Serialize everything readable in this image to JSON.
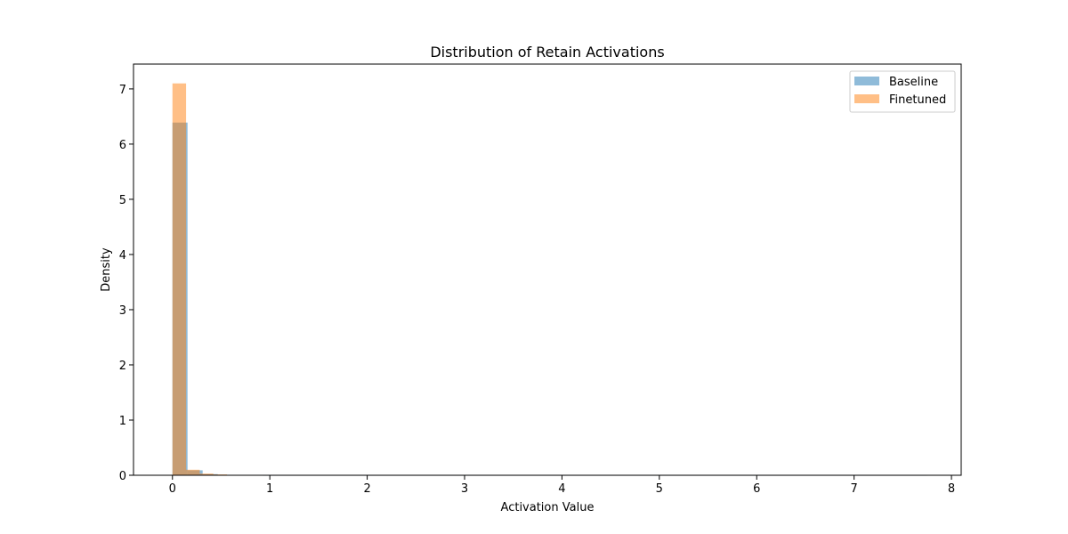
{
  "chart_data": {
    "type": "histogram",
    "title": "Distribution of Retain Activations",
    "xlabel": "Activation Value",
    "ylabel": "Density",
    "xlim": [
      -0.4,
      8.1
    ],
    "ylim": [
      0,
      7.45
    ],
    "xticks": [
      0,
      1,
      2,
      3,
      4,
      5,
      6,
      7,
      8
    ],
    "yticks": [
      0,
      1,
      2,
      3,
      4,
      5,
      6,
      7
    ],
    "grid": false,
    "legend": {
      "position": "top-right"
    },
    "series": [
      {
        "name": "Baseline",
        "color": "#1f77b4",
        "alpha": 0.5,
        "bins": [
          {
            "x0": 0.0,
            "x1": 0.155,
            "y": 6.39
          },
          {
            "x0": 0.155,
            "x1": 0.31,
            "y": 0.09
          },
          {
            "x0": 0.31,
            "x1": 0.465,
            "y": 0.02
          },
          {
            "x0": 0.465,
            "x1": 0.62,
            "y": 0.008
          },
          {
            "x0": 0.62,
            "x1": 0.775,
            "y": 0.004
          },
          {
            "x0": 0.775,
            "x1": 0.93,
            "y": 0.002
          },
          {
            "x0": 0.93,
            "x1": 7.75,
            "y": 0.001
          }
        ]
      },
      {
        "name": "Finetuned",
        "color": "#ff7f0e",
        "alpha": 0.5,
        "bins": [
          {
            "x0": 0.0,
            "x1": 0.14,
            "y": 7.1
          },
          {
            "x0": 0.14,
            "x1": 0.28,
            "y": 0.1
          },
          {
            "x0": 0.28,
            "x1": 0.42,
            "y": 0.03
          },
          {
            "x0": 0.42,
            "x1": 0.56,
            "y": 0.015
          },
          {
            "x0": 0.56,
            "x1": 0.7,
            "y": 0.008
          }
        ]
      }
    ]
  }
}
